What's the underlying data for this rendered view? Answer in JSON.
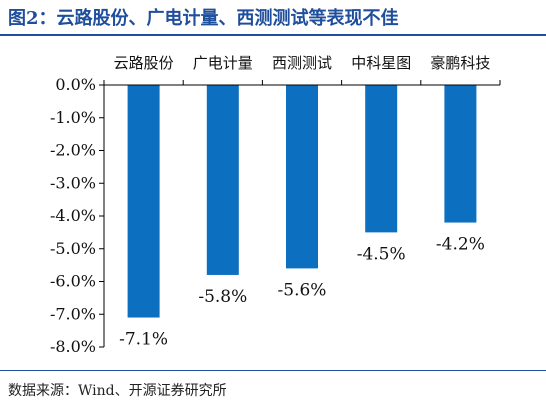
{
  "figure": {
    "title": "图2：云路股份、广电计量、西测测试等表现不佳",
    "source": "数据来源：Wind、开源证券研究所"
  },
  "chart_data": {
    "type": "bar",
    "categories": [
      "云路股份",
      "广电计量",
      "西测测试",
      "中科星图",
      "豪鹏科技"
    ],
    "values": [
      -7.1,
      -5.8,
      -5.6,
      -4.5,
      -4.2
    ],
    "data_labels": [
      "-7.1%",
      "-5.8%",
      "-5.6%",
      "-4.5%",
      "-4.2%"
    ],
    "ylim": [
      -8.0,
      0.0
    ],
    "yticks": [
      0.0,
      -1.0,
      -2.0,
      -3.0,
      -4.0,
      -5.0,
      -6.0,
      -7.0,
      -8.0
    ],
    "ytick_labels": [
      "0.0%",
      "-1.0%",
      "-2.0%",
      "-3.0%",
      "-4.0%",
      "-5.0%",
      "-6.0%",
      "-7.0%",
      "-8.0%"
    ],
    "category_axis_position": "top",
    "grid": false,
    "legend": "none",
    "bar_color": "#0c6fc0"
  }
}
